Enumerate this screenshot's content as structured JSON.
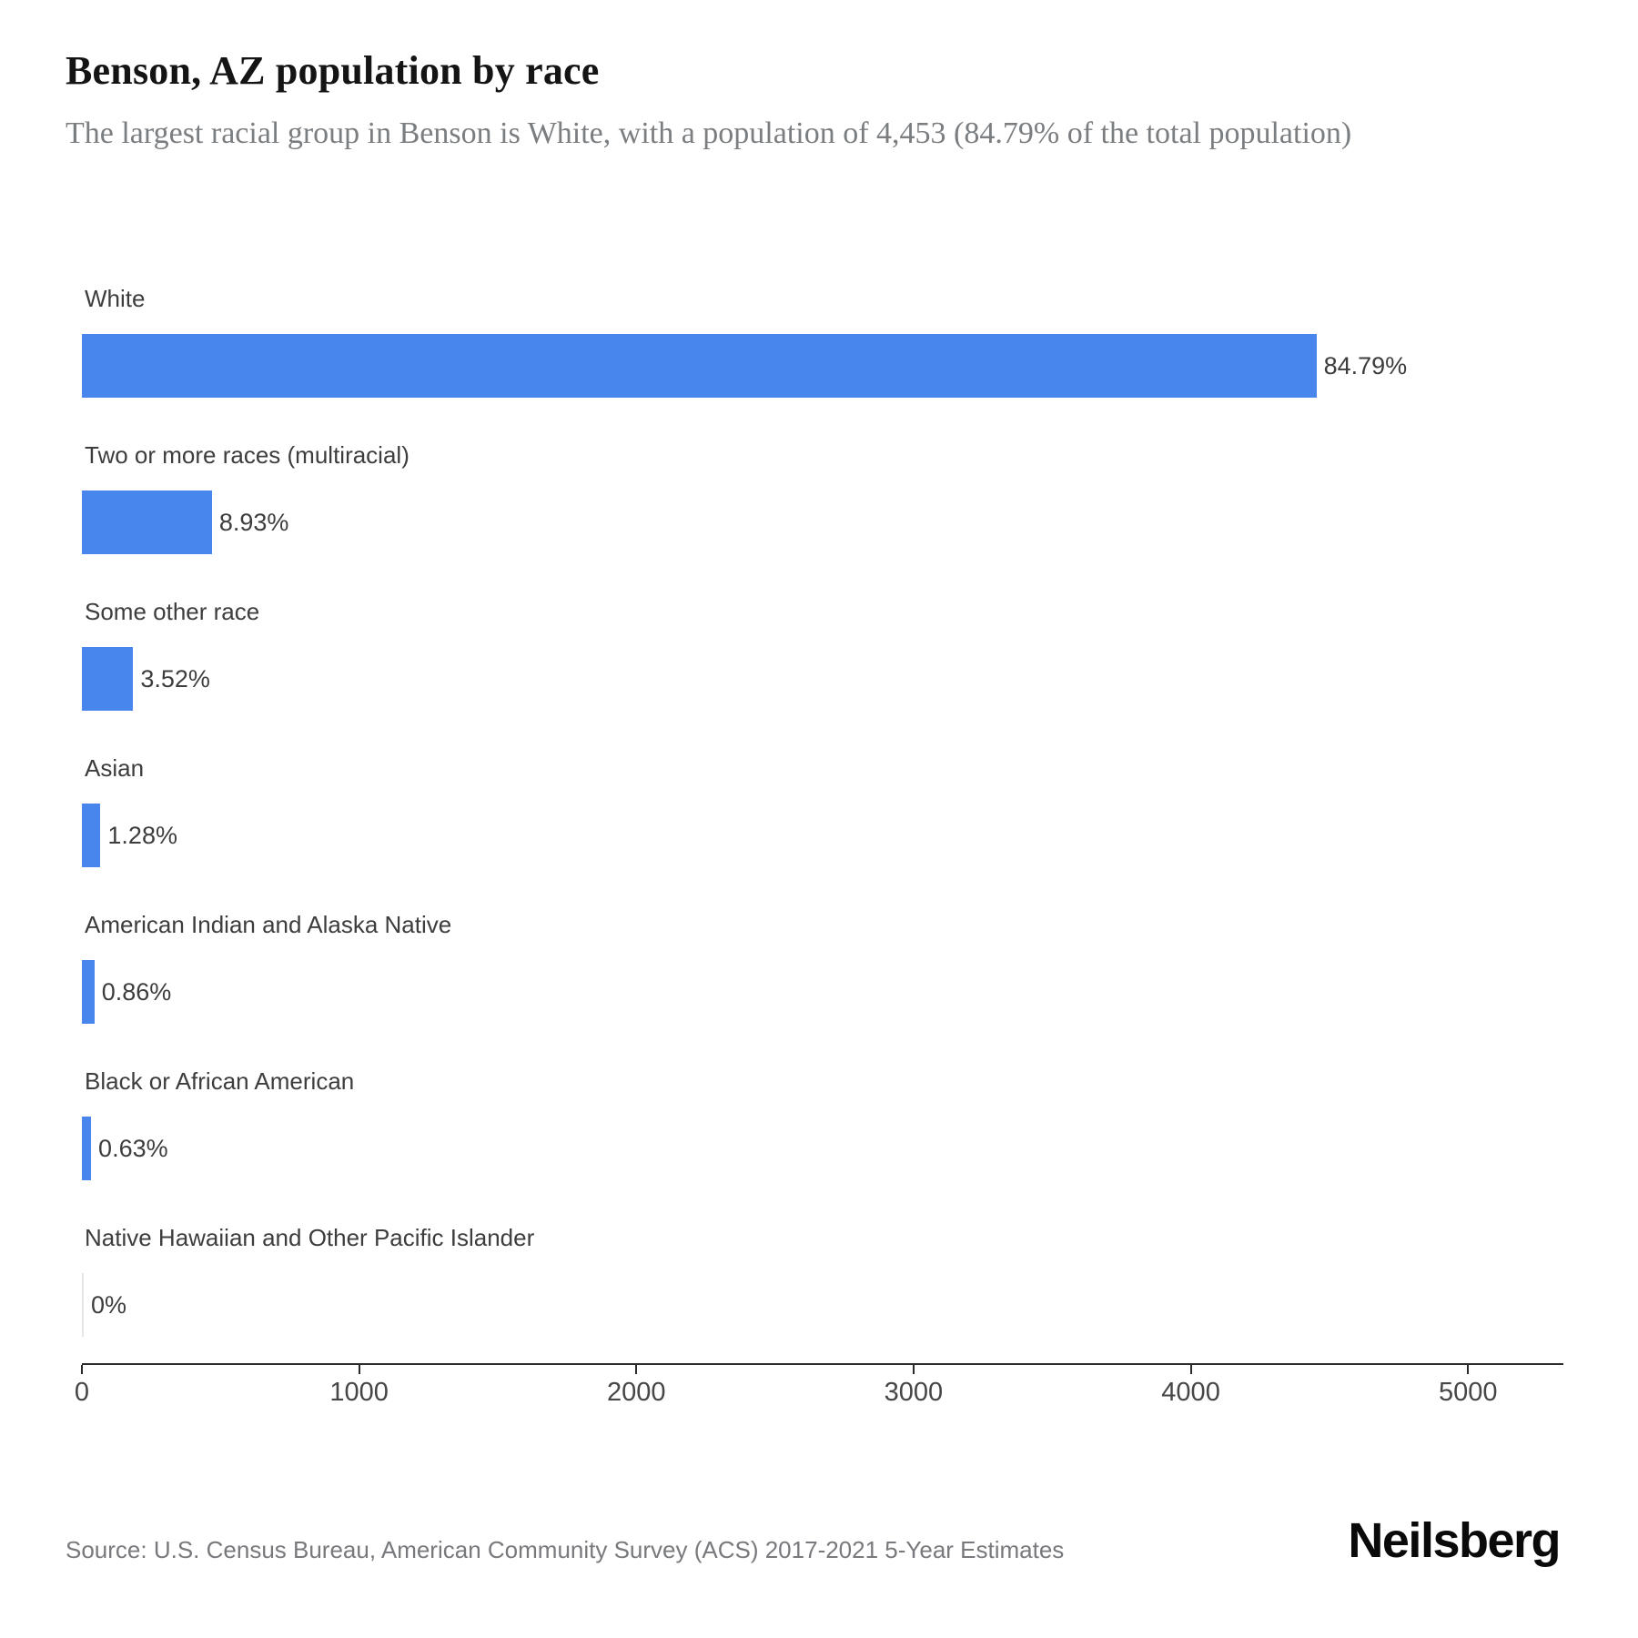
{
  "header": {
    "title": "Benson, AZ population by race",
    "subtitle": "The largest racial group in Benson is White, with a population of 4,453 (84.79% of the total population)"
  },
  "chart_data": {
    "type": "bar",
    "orientation": "horizontal",
    "title": "Benson, AZ population by race",
    "xlabel": "",
    "ylabel": "",
    "grid": false,
    "legend": false,
    "bar_color": "#4885ED",
    "zero_bar_color": "#e7e7e7",
    "categories": [
      "White",
      "Two or more races (multiracial)",
      "Some other race",
      "Asian",
      "American Indian and Alaska Native",
      "Black or African American",
      "Native Hawaiian and Other Pacific Islander"
    ],
    "values": [
      4453,
      469,
      185,
      67,
      45,
      33,
      0
    ],
    "percent_labels": [
      "84.79%",
      "8.93%",
      "3.52%",
      "1.28%",
      "0.86%",
      "0.63%",
      "0%"
    ],
    "x_axis": {
      "ticks": [
        0,
        1000,
        2000,
        3000,
        4000,
        5000
      ],
      "tick_labels": [
        "0",
        "1000",
        "2000",
        "3000",
        "4000",
        "5000"
      ],
      "min": 0,
      "max": 5344
    }
  },
  "footer": {
    "source": "Source: U.S. Census Bureau, American Community Survey (ACS) 2017-2021 5-Year Estimates",
    "brand": "Neilsberg"
  }
}
